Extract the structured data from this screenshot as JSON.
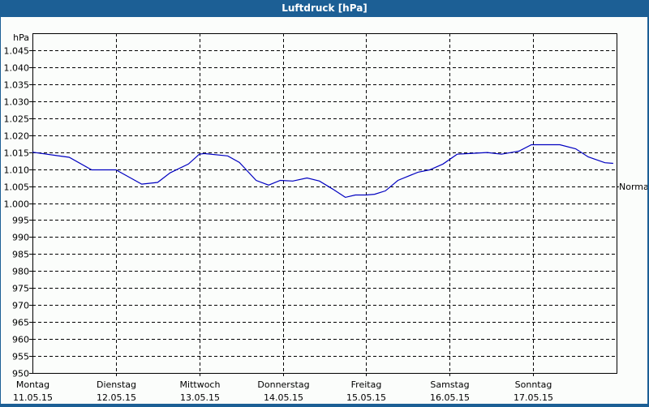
{
  "window": {
    "title": "Luftdruck [hPa]"
  },
  "chart_data": {
    "type": "line",
    "title": "Luftdruck [hPa]",
    "ylabel": "hPa",
    "xlabel": "",
    "ylim": [
      950,
      1045
    ],
    "yticks": [
      950,
      955,
      960,
      965,
      970,
      975,
      980,
      985,
      990,
      995,
      1000,
      1005,
      1010,
      1015,
      1020,
      1025,
      1030,
      1035,
      1040,
      1045
    ],
    "ytick_labels": [
      "950",
      "955",
      "960",
      "965",
      "970",
      "975",
      "980",
      "985",
      "990",
      "995",
      "1.000",
      "1.005",
      "1.010",
      "1.015",
      "1.020",
      "1.025",
      "1.030",
      "1.035",
      "1.040",
      "1.045"
    ],
    "categories": [
      {
        "day": "Montag",
        "date": "11.05.15"
      },
      {
        "day": "Dienstag",
        "date": "12.05.15"
      },
      {
        "day": "Mittwoch",
        "date": "13.05.15"
      },
      {
        "day": "Donnerstag",
        "date": "14.05.15"
      },
      {
        "day": "Freitag",
        "date": "15.05.15"
      },
      {
        "day": "Samstag",
        "date": "16.05.15"
      },
      {
        "day": "Sonntag",
        "date": "17.05.15"
      }
    ],
    "grid": true,
    "annotations": [
      {
        "text": "Normal",
        "position": "right",
        "y": 1005
      }
    ],
    "series": [
      {
        "name": "Luftdruck",
        "color": "#0000c0",
        "x_days": [
          0,
          0.29,
          0.44,
          0.71,
          1.0,
          1.17,
          1.31,
          1.5,
          1.65,
          1.87,
          2.0,
          2.06,
          2.34,
          2.48,
          2.68,
          2.83,
          2.97,
          3.12,
          3.29,
          3.44,
          3.6,
          3.75,
          3.87,
          4.0,
          4.1,
          4.23,
          4.38,
          4.62,
          4.76,
          4.92,
          5.09,
          5.23,
          5.45,
          5.62,
          5.83,
          5.98,
          6.04,
          6.32,
          6.51,
          6.66,
          6.86,
          6.96
        ],
        "values": [
          1015,
          1014,
          1013.5,
          1009.8,
          1009.8,
          1007.5,
          1005.6,
          1006.1,
          1008.9,
          1011.5,
          1014.4,
          1014.6,
          1013.9,
          1012.0,
          1006.7,
          1005.3,
          1006.7,
          1006.5,
          1007.4,
          1006.5,
          1004.1,
          1001.7,
          1002.4,
          1002.4,
          1002.6,
          1003.6,
          1006.7,
          1009.1,
          1009.8,
          1011.5,
          1014.4,
          1014.6,
          1014.9,
          1014.4,
          1015.3,
          1017.2,
          1017.2,
          1017.2,
          1016.0,
          1013.6,
          1011.9,
          1011.7
        ]
      }
    ]
  }
}
